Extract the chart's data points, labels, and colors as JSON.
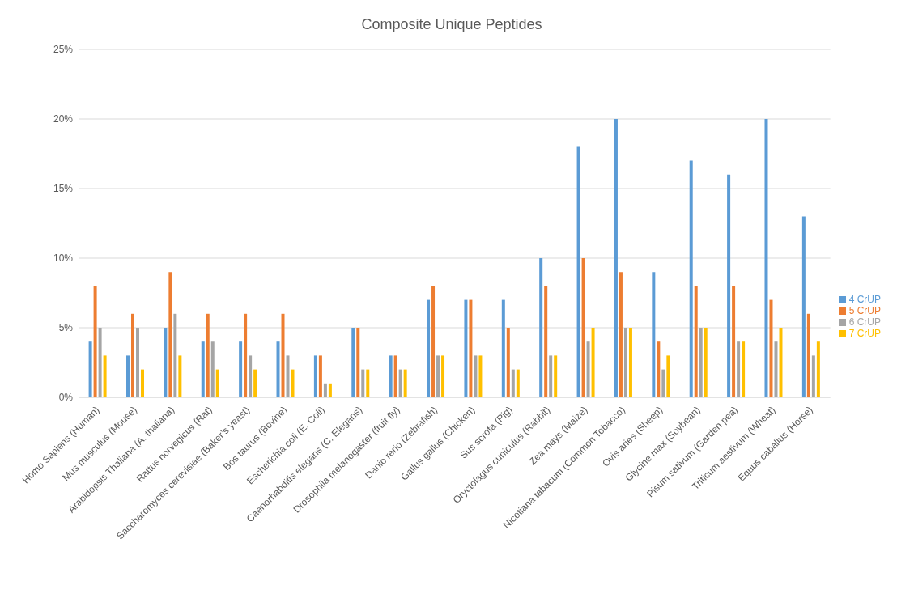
{
  "chart_data": {
    "type": "bar",
    "title": "Composite Unique Peptides",
    "categories": [
      "Homo Sapiens (Human)",
      "Mus musculus (Mouse)",
      "Arabidopsis Thaliana (A. thaliana)",
      "Rattus norvegicus (Rat)",
      "Saccharomyces cerevisiae (Baker’s yeast)",
      "Bos taurus (Bovine)",
      "Escherichia coli (E. Coli)",
      "Caenorhabditis elegans (C. Elegans)",
      "Drosophila melanogaster (fruit fly)",
      "Danio rerio (Zebrafish)",
      "Gallus gallus (Chicken)",
      "Sus scrofa (Pig)",
      "Oryctolagus cuniculus (Rabbit)",
      "Zea mays (Maize)",
      "Nicotiana tabacum (Common Tobacco)",
      "Ovis aries (Sheep)",
      "Glycine max (Soybean)",
      "Pisum sativum (Garden pea)",
      "Triticum aestivum (Wheat)",
      "Equus caballus (Horse)"
    ],
    "series": [
      {
        "name": "4 CrUP",
        "color": "#5b9bd5",
        "values": [
          4,
          3,
          5,
          4,
          4,
          4,
          3,
          5,
          3,
          7,
          7,
          7,
          10,
          18,
          20,
          9,
          17,
          16,
          20,
          13
        ]
      },
      {
        "name": "5 CrUP",
        "color": "#ed7d31",
        "values": [
          8,
          6,
          9,
          6,
          6,
          6,
          3,
          5,
          3,
          8,
          7,
          5,
          8,
          10,
          9,
          4,
          8,
          8,
          7,
          6
        ]
      },
      {
        "name": "6 CrUP",
        "color": "#a5a5a5",
        "values": [
          5,
          5,
          6,
          4,
          3,
          3,
          1,
          2,
          2,
          3,
          3,
          2,
          3,
          4,
          5,
          2,
          5,
          4,
          4,
          3
        ]
      },
      {
        "name": "7 CrUP",
        "color": "#ffc000",
        "values": [
          3,
          2,
          3,
          2,
          2,
          2,
          1,
          2,
          2,
          3,
          3,
          2,
          3,
          5,
          5,
          3,
          5,
          4,
          5,
          4
        ]
      }
    ],
    "ylim": [
      0,
      25
    ],
    "yticks": [
      {
        "value": 0,
        "label": "0%"
      },
      {
        "value": 5,
        "label": "5%"
      },
      {
        "value": 10,
        "label": "10%"
      },
      {
        "value": 15,
        "label": "15%"
      },
      {
        "value": 20,
        "label": "20%"
      },
      {
        "value": 25,
        "label": "25%"
      }
    ],
    "grid": "y",
    "legend": "right"
  }
}
